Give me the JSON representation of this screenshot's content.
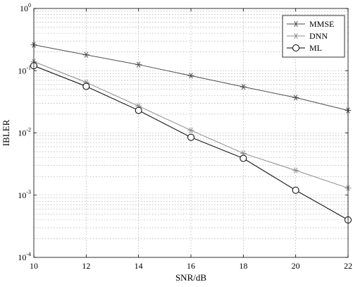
{
  "chart_data": {
    "type": "line",
    "title": "",
    "xlabel": "SNR/dB",
    "ylabel": "IBLER",
    "x": [
      10,
      12,
      14,
      16,
      18,
      20,
      22
    ],
    "xlim": [
      10,
      22
    ],
    "ylim": [
      0.0001,
      1
    ],
    "yscale": "log",
    "x_ticks": [
      10,
      12,
      14,
      16,
      18,
      20,
      22
    ],
    "y_ticks": [
      {
        "base": "10",
        "exp": "0"
      },
      {
        "base": "10",
        "exp": "-1"
      },
      {
        "base": "10",
        "exp": "-2"
      },
      {
        "base": "10",
        "exp": "-3"
      },
      {
        "base": "10",
        "exp": "-4"
      }
    ],
    "grid": true,
    "legend_position": "top-right",
    "series": [
      {
        "name": "MMSE",
        "marker": "asterisk",
        "color": "#4d4d4d",
        "values": [
          0.26,
          0.18,
          0.125,
          0.083,
          0.055,
          0.037,
          0.023
        ]
      },
      {
        "name": "DNN",
        "marker": "asterisk",
        "color": "#8c8c8c",
        "values": [
          0.14,
          0.065,
          0.027,
          0.011,
          0.0047,
          0.0025,
          0.0013
        ]
      },
      {
        "name": "ML",
        "marker": "circle",
        "color": "#000000",
        "values": [
          0.12,
          0.056,
          0.023,
          0.0085,
          0.0039,
          0.0012,
          0.0004
        ]
      }
    ]
  }
}
